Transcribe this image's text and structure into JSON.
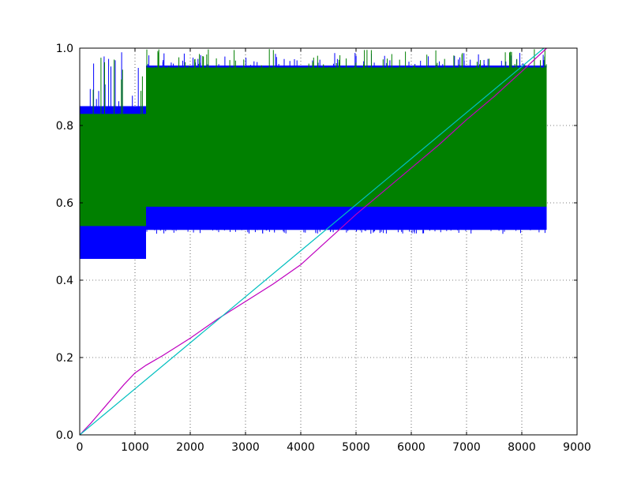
{
  "chart_data": {
    "type": "line",
    "title": "",
    "xlabel": "",
    "ylabel": "",
    "xlim": [
      0,
      9000
    ],
    "ylim": [
      0,
      1.0
    ],
    "grid": true,
    "x_ticks": [
      {
        "value": 0,
        "label": "0"
      },
      {
        "value": 1000,
        "label": "1000"
      },
      {
        "value": 2000,
        "label": "2000"
      },
      {
        "value": 3000,
        "label": "3000"
      },
      {
        "value": 4000,
        "label": "4000"
      },
      {
        "value": 5000,
        "label": "5000"
      },
      {
        "value": 6000,
        "label": "6000"
      },
      {
        "value": 7000,
        "label": "7000"
      },
      {
        "value": 8000,
        "label": "8000"
      },
      {
        "value": 9000,
        "label": "9000"
      }
    ],
    "y_ticks": [
      {
        "value": 0.0,
        "label": "0.0"
      },
      {
        "value": 0.2,
        "label": "0.2"
      },
      {
        "value": 0.4,
        "label": "0.4"
      },
      {
        "value": 0.6,
        "label": "0.6"
      },
      {
        "value": 0.8,
        "label": "0.8"
      },
      {
        "value": 1.0,
        "label": "1.0"
      }
    ],
    "series": [
      {
        "color": "#0000ff",
        "style": "band",
        "segments": [
          {
            "x0": 0,
            "x1": 1200,
            "low": 0.455,
            "high": 0.85,
            "core_low": 0.54,
            "core_high": 0.835
          },
          {
            "x0": 1200,
            "x1": 8450,
            "low": 0.53,
            "high": 0.955,
            "core_low": 0.59,
            "core_high": 0.945
          }
        ],
        "spike_max": 0.99,
        "dip_min": 0.52
      },
      {
        "color": "#008000",
        "style": "band",
        "segments": [
          {
            "x0": 0,
            "x1": 1200,
            "low": 0.54,
            "high": 0.83
          },
          {
            "x0": 1200,
            "x1": 8450,
            "low": 0.59,
            "high": 0.95
          }
        ],
        "spike_max": 1.0
      },
      {
        "color": "#bf00bf",
        "style": "line",
        "x": [
          0,
          200,
          500,
          800,
          1000,
          1200,
          1500,
          2000,
          2500,
          3000,
          3500,
          4000,
          4500,
          5000,
          5500,
          6000,
          6500,
          7000,
          7500,
          8000,
          8450
        ],
        "y": [
          0.0,
          0.03,
          0.08,
          0.13,
          0.16,
          0.18,
          0.205,
          0.25,
          0.3,
          0.345,
          0.39,
          0.44,
          0.505,
          0.57,
          0.63,
          0.69,
          0.75,
          0.815,
          0.875,
          0.94,
          1.0
        ]
      },
      {
        "color": "#00bfbf",
        "style": "line",
        "x": [
          0,
          8400
        ],
        "y": [
          0.0,
          1.0
        ]
      }
    ]
  }
}
